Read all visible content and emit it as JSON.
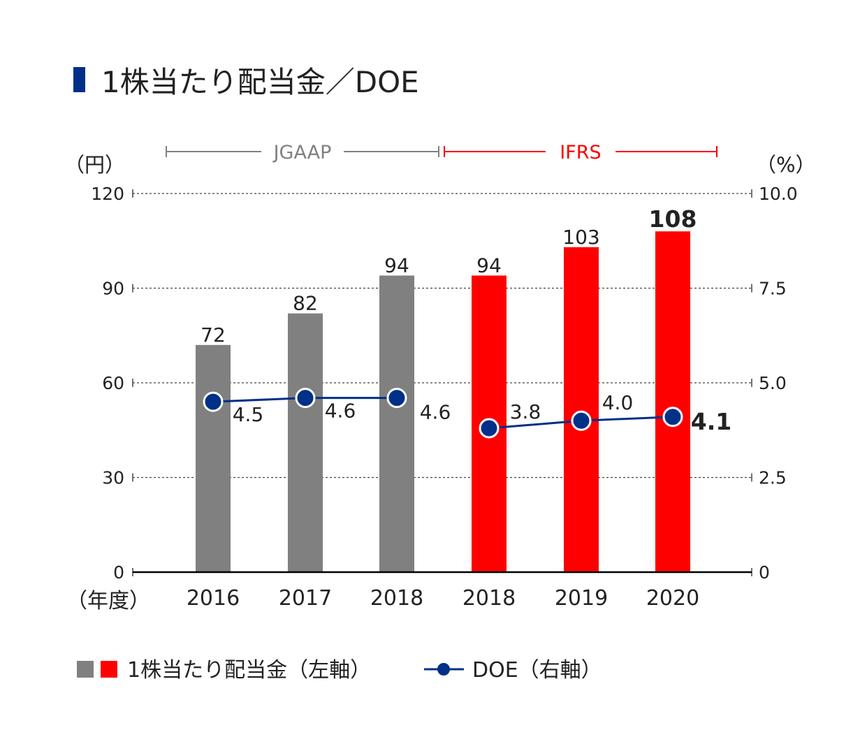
{
  "chart_data": {
    "type": "bar+line",
    "title": "1株当たり配当金／DOE",
    "left_axis": {
      "unit_label": "（円）",
      "ylim": [
        0,
        120
      ],
      "ticks": [
        "0",
        "30",
        "60",
        "90",
        "120"
      ]
    },
    "right_axis": {
      "unit_label": "（%）",
      "ylim": [
        0,
        10
      ],
      "ticks": [
        "0",
        "2.5",
        "5.0",
        "7.5",
        "10.0"
      ]
    },
    "x_unit_label": "（年度）",
    "categories": [
      "2016",
      "2017",
      "2018",
      "2018",
      "2019",
      "2020"
    ],
    "series": [
      {
        "name": "1株当たり配当金（左軸）",
        "type": "bar",
        "axis": "left",
        "values": [
          72,
          82,
          94,
          94,
          103,
          108
        ],
        "labels": [
          "72",
          "82",
          "94",
          "94",
          "103",
          "108"
        ]
      },
      {
        "name": "DOE（右軸）",
        "type": "line",
        "axis": "right",
        "values": [
          4.5,
          4.6,
          4.6,
          3.8,
          4.0,
          4.1
        ],
        "labels": [
          "4.5",
          "4.6",
          "4.6",
          "3.8",
          "4.0",
          "4.1"
        ]
      }
    ],
    "standards": [
      {
        "label": "JGAAP",
        "from": 0,
        "to": 2,
        "color": "#808080"
      },
      {
        "label": "IFRS",
        "from": 3,
        "to": 5,
        "color": "#ff0000"
      }
    ],
    "highlight_index": 5,
    "legend": {
      "bar_label": "1株当たり配当金（左軸）",
      "line_label": "DOE（右軸）",
      "placement": "bottom"
    },
    "colors": {
      "title_marker": "#003087",
      "jgaap_bar": "#808080",
      "ifrs_bar": "#ff0000",
      "doe_line": "#003087",
      "axis": "#000000",
      "text": "#222222"
    }
  }
}
